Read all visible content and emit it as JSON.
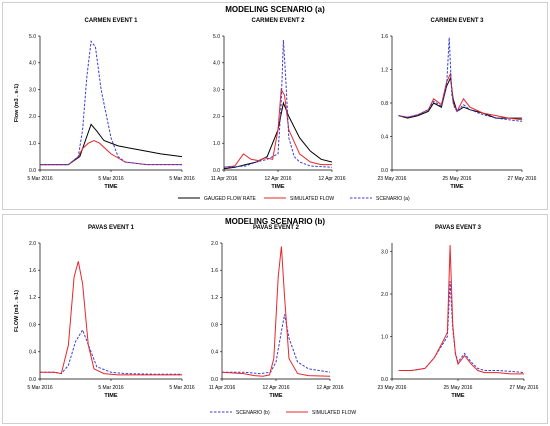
{
  "scenarios": {
    "a": {
      "title": "MODELING SCENARIO (a)"
    },
    "b": {
      "title": "MODELING SCENARIO (b)"
    }
  },
  "legend_a": [
    "GAUGED FLOW RATE",
    "SIMULATED FLOW",
    "SCENARIO (a)"
  ],
  "legend_b": [
    "SCENARIO (b)",
    "SIMULATED FLOW"
  ],
  "colors": {
    "gauged": "#000000",
    "simulated": "#e8262a",
    "scenario": "#3a3ad6"
  },
  "chart_data": [
    {
      "type": "line",
      "title": "CARMEN EVENT 1",
      "xlabel": "TIME",
      "ylabel": "Flow (m3 . s-1)",
      "ylim": [
        0,
        5
      ],
      "yticks": [
        "0.0",
        "1.0",
        "2.0",
        "3.0",
        "4.0",
        "5.0"
      ],
      "xticks": [
        "5 Mar 2016",
        "5 Mar 2016",
        "5 Mar 2016"
      ],
      "series": [
        {
          "name": "GAUGED FLOW RATE",
          "style": "solid",
          "color": "#000000",
          "x": [
            0,
            0.1,
            0.2,
            0.28,
            0.32,
            0.36,
            0.4,
            0.45,
            0.55,
            0.7,
            0.85,
            1.0
          ],
          "y": [
            0.2,
            0.2,
            0.2,
            0.5,
            1.1,
            1.7,
            1.45,
            1.1,
            0.9,
            0.75,
            0.6,
            0.5
          ]
        },
        {
          "name": "SIMULATED FLOW",
          "style": "solid",
          "color": "#e8262a",
          "x": [
            0,
            0.1,
            0.2,
            0.27,
            0.3,
            0.34,
            0.38,
            0.42,
            0.5,
            0.6,
            0.75,
            1.0
          ],
          "y": [
            0.2,
            0.2,
            0.2,
            0.5,
            0.8,
            1.0,
            1.1,
            1.0,
            0.6,
            0.3,
            0.2,
            0.2
          ]
        },
        {
          "name": "SCENARIO (a)",
          "style": "dashed",
          "color": "#3a3ad6",
          "x": [
            0,
            0.1,
            0.2,
            0.27,
            0.3,
            0.33,
            0.36,
            0.39,
            0.43,
            0.5,
            0.55,
            0.6,
            0.75,
            1.0
          ],
          "y": [
            0.2,
            0.2,
            0.2,
            0.5,
            1.5,
            3.5,
            4.8,
            4.6,
            3.0,
            1.2,
            0.5,
            0.3,
            0.2,
            0.2
          ]
        }
      ]
    },
    {
      "type": "line",
      "title": "CARMEN EVENT 2",
      "xlabel": "TIME",
      "ylabel": "",
      "ylim": [
        0,
        5
      ],
      "yticks": [
        "0.0",
        "1.0",
        "2.0",
        "3.0",
        "4.0",
        "5.0"
      ],
      "xticks": [
        "11 Apr 2016",
        "12 Apr 2016",
        "12 Apr 2016"
      ],
      "series": [
        {
          "name": "GAUGED FLOW RATE",
          "style": "solid",
          "color": "#000000",
          "x": [
            0,
            0.1,
            0.2,
            0.3,
            0.4,
            0.5,
            0.55,
            0.6,
            0.7,
            0.8,
            0.9,
            1.0
          ],
          "y": [
            0.05,
            0.1,
            0.2,
            0.3,
            0.5,
            1.5,
            2.5,
            2.0,
            1.2,
            0.7,
            0.4,
            0.3
          ]
        },
        {
          "name": "SIMULATED FLOW",
          "style": "solid",
          "color": "#e8262a",
          "x": [
            0,
            0.1,
            0.18,
            0.25,
            0.32,
            0.38,
            0.45,
            0.5,
            0.53,
            0.56,
            0.6,
            0.7,
            0.8,
            0.9,
            1.0
          ],
          "y": [
            0.1,
            0.15,
            0.6,
            0.4,
            0.35,
            0.45,
            0.4,
            1.5,
            3.0,
            2.8,
            1.5,
            0.6,
            0.3,
            0.2,
            0.2
          ]
        },
        {
          "name": "SCENARIO (a)",
          "style": "dashed",
          "color": "#3a3ad6",
          "x": [
            0,
            0.2,
            0.3,
            0.4,
            0.5,
            0.53,
            0.55,
            0.57,
            0.6,
            0.65,
            0.7,
            0.8,
            1.0
          ],
          "y": [
            0.1,
            0.15,
            0.3,
            0.4,
            0.6,
            2.5,
            4.85,
            3.5,
            1.2,
            0.5,
            0.3,
            0.15,
            0.1
          ]
        }
      ]
    },
    {
      "type": "line",
      "title": "CARMEN EVENT 3",
      "xlabel": "TIME",
      "ylabel": "",
      "ylim": [
        0,
        1.6
      ],
      "yticks": [
        "0.0",
        "0.4",
        "0.8",
        "1.2",
        "1.6"
      ],
      "xticks": [
        "23 May 2016",
        "25 May 2016",
        "27 May 2016"
      ],
      "series": [
        {
          "name": "GAUGED FLOW RATE",
          "style": "solid",
          "color": "#000000",
          "x": [
            0.05,
            0.12,
            0.2,
            0.28,
            0.32,
            0.38,
            0.42,
            0.45,
            0.47,
            0.5,
            0.55,
            0.6,
            0.7,
            0.8,
            0.9,
            1.0
          ],
          "y": [
            0.65,
            0.62,
            0.65,
            0.7,
            0.8,
            0.75,
            1.0,
            1.1,
            0.85,
            0.7,
            0.75,
            0.72,
            0.68,
            0.62,
            0.62,
            0.62
          ]
        },
        {
          "name": "SIMULATED FLOW",
          "style": "solid",
          "color": "#e8262a",
          "x": [
            0.05,
            0.12,
            0.2,
            0.28,
            0.32,
            0.38,
            0.42,
            0.45,
            0.47,
            0.5,
            0.55,
            0.6,
            0.7,
            0.8,
            0.9,
            1.0
          ],
          "y": [
            0.65,
            0.63,
            0.66,
            0.72,
            0.85,
            0.78,
            1.05,
            1.15,
            0.8,
            0.7,
            0.85,
            0.75,
            0.68,
            0.65,
            0.62,
            0.6
          ]
        },
        {
          "name": "SCENARIO (a)",
          "style": "dashed",
          "color": "#3a3ad6",
          "x": [
            0.05,
            0.12,
            0.2,
            0.28,
            0.32,
            0.38,
            0.42,
            0.44,
            0.46,
            0.48,
            0.5,
            0.55,
            0.6,
            0.7,
            0.8,
            0.9,
            1.0
          ],
          "y": [
            0.65,
            0.63,
            0.66,
            0.72,
            0.82,
            0.76,
            1.0,
            1.58,
            0.9,
            0.75,
            0.7,
            0.78,
            0.72,
            0.66,
            0.62,
            0.6,
            0.58
          ]
        }
      ]
    },
    {
      "type": "line",
      "title": "PAVAS EVENT 1",
      "xlabel": "TIME",
      "ylabel": "FLOW (m3 . s-1)",
      "ylim": [
        0,
        2.0
      ],
      "yticks": [
        "0.0",
        "0.4",
        "0.8",
        "1.2",
        "1.6",
        "2.0"
      ],
      "xticks": [
        "5 Mar 2016",
        "5 Mar 2016",
        "5 Mar 2016"
      ],
      "series": [
        {
          "name": "SCENARIO (b)",
          "style": "dashed",
          "color": "#3a3ad6",
          "x": [
            0,
            0.1,
            0.15,
            0.2,
            0.25,
            0.3,
            0.35,
            0.4,
            0.5,
            0.6,
            0.8,
            1.0
          ],
          "y": [
            0.1,
            0.1,
            0.08,
            0.2,
            0.55,
            0.72,
            0.45,
            0.18,
            0.1,
            0.08,
            0.07,
            0.07
          ]
        },
        {
          "name": "SIMULATED FLOW",
          "style": "solid",
          "color": "#e8262a",
          "x": [
            0,
            0.1,
            0.15,
            0.2,
            0.24,
            0.27,
            0.3,
            0.34,
            0.38,
            0.45,
            0.55,
            0.7,
            1.0
          ],
          "y": [
            0.1,
            0.1,
            0.08,
            0.5,
            1.5,
            1.73,
            1.4,
            0.5,
            0.15,
            0.08,
            0.06,
            0.06,
            0.06
          ]
        }
      ]
    },
    {
      "type": "line",
      "title": "PAVAS EVENT 2",
      "xlabel": "TIME",
      "ylabel": "",
      "ylim": [
        0,
        2.0
      ],
      "yticks": [
        "0.0",
        "0.4",
        "0.8",
        "1.2",
        "1.6",
        "2.0"
      ],
      "xticks": [
        "11 Apr 2016",
        "12 Apr 2016",
        "12 Apr 2016"
      ],
      "series": [
        {
          "name": "SCENARIO (b)",
          "style": "dashed",
          "color": "#3a3ad6",
          "x": [
            0,
            0.2,
            0.35,
            0.45,
            0.5,
            0.55,
            0.58,
            0.62,
            0.7,
            0.8,
            1.0
          ],
          "y": [
            0.1,
            0.1,
            0.08,
            0.1,
            0.25,
            0.7,
            0.95,
            0.6,
            0.25,
            0.15,
            0.1
          ]
        },
        {
          "name": "SIMULATED FLOW",
          "style": "solid",
          "color": "#e8262a",
          "x": [
            0,
            0.2,
            0.3,
            0.38,
            0.44,
            0.48,
            0.52,
            0.55,
            0.58,
            0.62,
            0.7,
            0.8,
            1.0
          ],
          "y": [
            0.1,
            0.08,
            0.05,
            0.04,
            0.06,
            0.3,
            1.5,
            1.95,
            1.2,
            0.3,
            0.08,
            0.05,
            0.04
          ]
        }
      ]
    },
    {
      "type": "line",
      "title": "PAVAS EVENT 3",
      "xlabel": "TIME",
      "ylabel": "",
      "ylim": [
        0,
        3.2
      ],
      "yticks": [
        "0.0",
        "1.0",
        "2.0",
        "3.0"
      ],
      "xticks": [
        "23 May 2016",
        "25 May 2016",
        "27 May 2016"
      ],
      "series": [
        {
          "name": "SCENARIO (b)",
          "style": "dashed",
          "color": "#3a3ad6",
          "x": [
            0.05,
            0.15,
            0.25,
            0.32,
            0.38,
            0.42,
            0.44,
            0.46,
            0.48,
            0.5,
            0.55,
            0.6,
            0.65,
            0.7,
            0.8,
            0.9,
            1.0
          ],
          "y": [
            0.2,
            0.2,
            0.25,
            0.5,
            0.8,
            1.0,
            2.3,
            1.2,
            0.6,
            0.4,
            0.6,
            0.4,
            0.25,
            0.2,
            0.2,
            0.18,
            0.15
          ]
        },
        {
          "name": "SIMULATED FLOW",
          "style": "solid",
          "color": "#e8262a",
          "x": [
            0.05,
            0.15,
            0.25,
            0.32,
            0.38,
            0.42,
            0.44,
            0.46,
            0.48,
            0.5,
            0.55,
            0.6,
            0.65,
            0.7,
            0.8,
            0.9,
            1.0
          ],
          "y": [
            0.2,
            0.2,
            0.25,
            0.5,
            0.85,
            1.1,
            3.15,
            1.3,
            0.6,
            0.35,
            0.55,
            0.35,
            0.2,
            0.15,
            0.15,
            0.12,
            0.12
          ]
        }
      ]
    }
  ]
}
